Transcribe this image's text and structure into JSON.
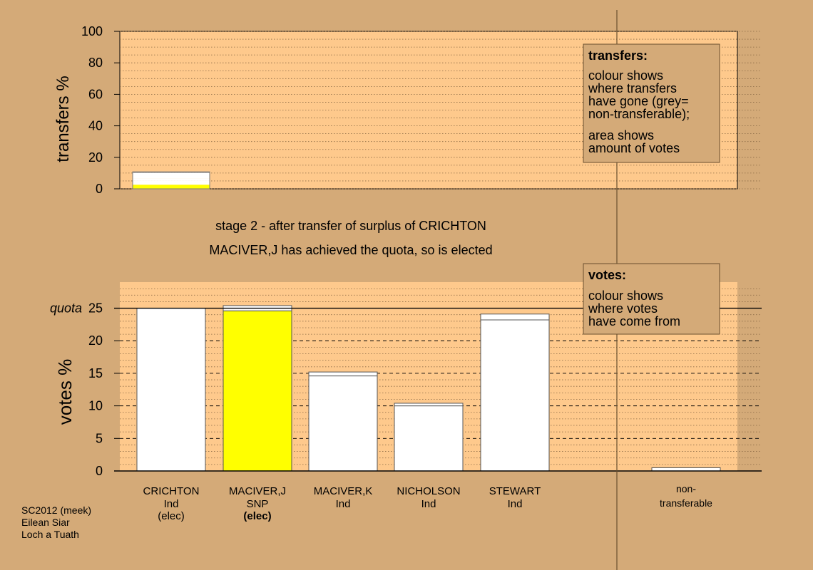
{
  "colors": {
    "background": "#d4aa78",
    "plot_area": "#fec98c",
    "bar_base": "#ffffff",
    "snp": "#ffff00",
    "legend_box": "#d4aa78",
    "non_transferable": "#a8a8a8"
  },
  "subtitle": {
    "line1": "stage 2 - after transfer of surplus of CRICHTON",
    "line2": "MACIVER,J has achieved the quota, so is elected"
  },
  "footer": {
    "line1": "SC2012 (meek)",
    "line2": "Eilean Siar",
    "line3": "Loch a Tuath"
  },
  "candidates": [
    {
      "name": "CRICHTON",
      "party": "Ind",
      "note": "(elec)",
      "note_bold": false
    },
    {
      "name": "MACIVER,J",
      "party": "SNP",
      "note": "(elec)",
      "note_bold": true
    },
    {
      "name": "MACIVER,K",
      "party": "Ind",
      "note": "",
      "note_bold": false
    },
    {
      "name": "NICHOLSON",
      "party": "Ind",
      "note": "",
      "note_bold": false
    },
    {
      "name": "STEWART",
      "party": "Ind",
      "note": "",
      "note_bold": false
    }
  ],
  "non_transferable_label": {
    "line1": "non-",
    "line2": "transferable"
  },
  "chart_data": [
    {
      "type": "bar",
      "ylabel": "transfers %",
      "ylim": [
        0,
        100
      ],
      "yticks": [
        0,
        20,
        40,
        60,
        80,
        100
      ],
      "grid": "dotted",
      "bars": [
        {
          "from": "CRICHTON",
          "total": 10.8,
          "segments": [
            {
              "to": "MACIVER,J",
              "value": 2.6,
              "color": "#ffff00"
            },
            {
              "to": "MACIVER,K",
              "value": 2.4,
              "color": "#ffffff"
            },
            {
              "to": "NICHOLSON",
              "value": 1.6,
              "color": "#ffffff"
            },
            {
              "to": "STEWART",
              "value": 3.4,
              "color": "#ffffff"
            },
            {
              "to": "non-transferable",
              "value": 0.8,
              "color": "#a8a8a8"
            }
          ]
        }
      ],
      "legend": {
        "title": "transfers:",
        "para1": [
          "colour shows",
          "where transfers",
          "have gone (grey=",
          "non-transferable);"
        ],
        "para2": [
          "area shows",
          "amount of votes"
        ],
        "placement": "top-right"
      }
    },
    {
      "type": "bar",
      "ylabel": "votes %",
      "ylim": [
        0,
        29
      ],
      "yticks": [
        0,
        5,
        10,
        15,
        20,
        25
      ],
      "quota": 25,
      "quota_label": "quota",
      "grid": "dotted",
      "categories": [
        "CRICHTON",
        "MACIVER,J",
        "MACIVER,K",
        "NICHOLSON",
        "STEWART",
        "non-transferable"
      ],
      "series": [
        {
          "values": [
            25.0,
            24.6,
            14.6,
            10.0,
            23.2,
            0.0
          ]
        },
        {
          "values": [
            0.0,
            0.8,
            0.6,
            0.4,
            0.9,
            0.5
          ]
        }
      ],
      "legend": {
        "title": "votes:",
        "para1": [
          "colour shows",
          "where votes",
          "have come from"
        ],
        "placement": "top-right"
      }
    }
  ]
}
